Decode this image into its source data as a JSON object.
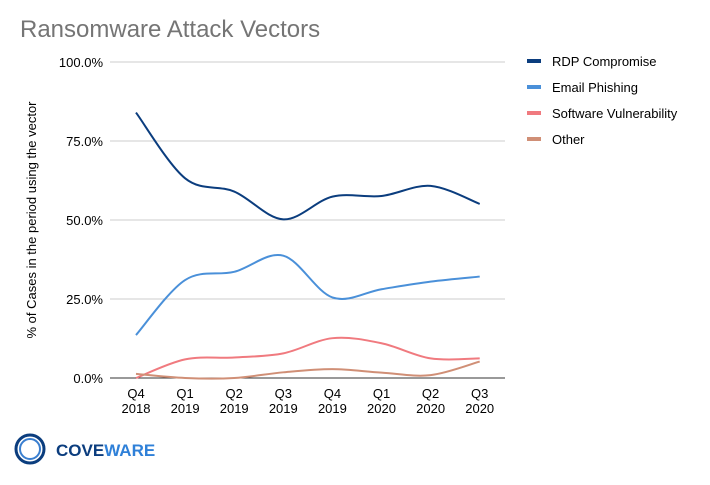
{
  "chart_data": {
    "type": "line",
    "title": "Ransomware Attack Vectors",
    "ylabel": "% of Cases in the period using the vector",
    "xlabel": "",
    "categories": [
      [
        "Q4",
        "2018"
      ],
      [
        "Q1",
        "2019"
      ],
      [
        "Q2",
        "2019"
      ],
      [
        "Q3",
        "2019"
      ],
      [
        "Q4",
        "2019"
      ],
      [
        "Q1",
        "2020"
      ],
      [
        "Q2",
        "2020"
      ],
      [
        "Q3",
        "2020"
      ]
    ],
    "ylim": [
      0,
      100
    ],
    "yticks": [
      "0.0%",
      "25.0%",
      "50.0%",
      "75.0%",
      "100.0%"
    ],
    "grid": true,
    "smooth": true,
    "legend_position": "right",
    "series": [
      {
        "name": "RDP Compromise",
        "color": "#0b3d7e",
        "values": [
          84.0,
          63.2,
          59.0,
          50.2,
          57.4,
          57.6,
          60.8,
          55.1
        ]
      },
      {
        "name": "Email Phishing",
        "color": "#4a90d9",
        "values": [
          13.6,
          31.0,
          33.6,
          38.7,
          25.5,
          28.1,
          30.5,
          32.1
        ]
      },
      {
        "name": "Software Vulnerability",
        "color": "#f07a7f",
        "values": [
          0.0,
          5.9,
          6.5,
          7.8,
          12.6,
          11.0,
          6.2,
          6.2
        ]
      },
      {
        "name": "Other",
        "color": "#d08f76",
        "values": [
          1.3,
          0.0,
          0.0,
          1.8,
          2.8,
          1.7,
          0.9,
          5.2
        ]
      }
    ]
  },
  "logo": {
    "text_a": "COVE",
    "text_b": "WARE"
  }
}
